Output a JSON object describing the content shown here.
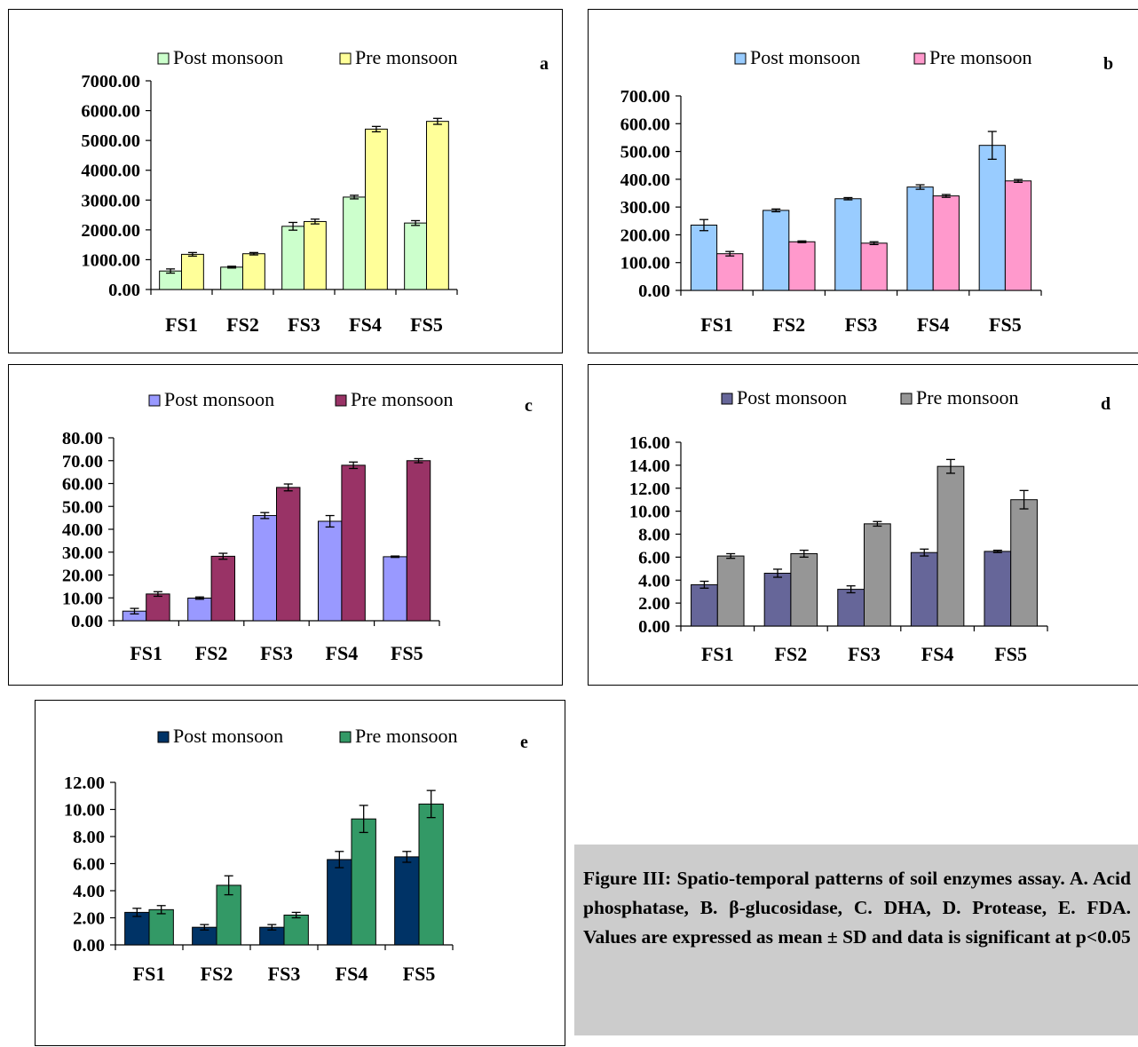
{
  "chart_data": [
    {
      "type": "bar",
      "title": "a",
      "categories": [
        "FS1",
        "FS2",
        "FS3",
        "FS4",
        "FS5"
      ],
      "ylim": [
        0,
        7000
      ],
      "yticks": [
        "0.00",
        "1000.00",
        "2000.00",
        "3000.00",
        "4000.00",
        "5000.00",
        "6000.00",
        "7000.00"
      ],
      "legend_position": "top",
      "series": [
        {
          "name": "Post monsoon",
          "color": "#ccffcc",
          "values": [
            620,
            750,
            2120,
            3100,
            2230
          ],
          "errors": [
            70,
            30,
            130,
            60,
            80
          ]
        },
        {
          "name": "Pre monsoon",
          "color": "#ffff99",
          "values": [
            1180,
            1200,
            2280,
            5380,
            5640
          ],
          "errors": [
            60,
            40,
            80,
            90,
            100
          ]
        }
      ]
    },
    {
      "type": "bar",
      "title": "b",
      "categories": [
        "FS1",
        "FS2",
        "FS3",
        "FS4",
        "FS5"
      ],
      "ylim": [
        0,
        700
      ],
      "yticks": [
        "0.00",
        "100.00",
        "200.00",
        "300.00",
        "400.00",
        "500.00",
        "600.00",
        "700.00"
      ],
      "legend_position": "top",
      "series": [
        {
          "name": "Post monsoon",
          "color": "#99ccff",
          "values": [
            235,
            288,
            330,
            372,
            522
          ],
          "errors": [
            20,
            5,
            4,
            8,
            50
          ]
        },
        {
          "name": "Pre monsoon",
          "color": "#ff99cc",
          "values": [
            132,
            175,
            170,
            340,
            394
          ],
          "errors": [
            8,
            3,
            5,
            5,
            5
          ]
        }
      ]
    },
    {
      "type": "bar",
      "title": "c",
      "categories": [
        "FS1",
        "FS2",
        "FS3",
        "FS4",
        "FS5"
      ],
      "ylim": [
        0,
        80
      ],
      "yticks": [
        "0.00",
        "10.00",
        "20.00",
        "30.00",
        "40.00",
        "50.00",
        "60.00",
        "70.00",
        "80.00"
      ],
      "legend_position": "top",
      "series": [
        {
          "name": "Post monsoon",
          "color": "#9999ff",
          "values": [
            4.2,
            9.9,
            46.0,
            43.5,
            28.0
          ],
          "errors": [
            1.2,
            0.5,
            1.3,
            2.5,
            0.3
          ]
        },
        {
          "name": "Pre monsoon",
          "color": "#993366",
          "values": [
            11.7,
            28.2,
            58.3,
            68.0,
            70.0
          ],
          "errors": [
            1.0,
            1.3,
            1.5,
            1.4,
            0.9
          ]
        }
      ]
    },
    {
      "type": "bar",
      "title": "d",
      "categories": [
        "FS1",
        "FS2",
        "FS3",
        "FS4",
        "FS5"
      ],
      "ylim": [
        0,
        16
      ],
      "yticks": [
        "0.00",
        "2.00",
        "4.00",
        "6.00",
        "8.00",
        "10.00",
        "12.00",
        "14.00",
        "16.00"
      ],
      "legend_position": "top",
      "series": [
        {
          "name": "Post monsoon",
          "color": "#666699",
          "values": [
            3.6,
            4.6,
            3.2,
            6.4,
            6.5
          ],
          "errors": [
            0.3,
            0.35,
            0.3,
            0.3,
            0.1
          ]
        },
        {
          "name": "Pre monsoon",
          "color": "#969696",
          "values": [
            6.1,
            6.3,
            8.9,
            13.9,
            11.0
          ],
          "errors": [
            0.2,
            0.3,
            0.2,
            0.6,
            0.8
          ]
        }
      ]
    },
    {
      "type": "bar",
      "title": "e",
      "categories": [
        "FS1",
        "FS2",
        "FS3",
        "FS4",
        "FS5"
      ],
      "ylim": [
        0,
        12
      ],
      "yticks": [
        "0.00",
        "2.00",
        "4.00",
        "6.00",
        "8.00",
        "10.00",
        "12.00"
      ],
      "legend_position": "top",
      "series": [
        {
          "name": "Post monsoon",
          "color": "#003366",
          "values": [
            2.4,
            1.3,
            1.3,
            6.3,
            6.5
          ],
          "errors": [
            0.3,
            0.2,
            0.2,
            0.6,
            0.4
          ]
        },
        {
          "name": "Pre monsoon",
          "color": "#339966",
          "values": [
            2.6,
            4.4,
            2.2,
            9.3,
            10.4
          ],
          "errors": [
            0.3,
            0.7,
            0.2,
            1.0,
            1.0
          ]
        }
      ]
    }
  ],
  "caption": "Figure III: Spatio-temporal patterns of soil enzymes assay. A. Acid phosphatase, B. β-glucosidase, C. DHA, D. Protease, E. FDA. Values are expressed as mean ± SD and data is significant at p<0.05"
}
